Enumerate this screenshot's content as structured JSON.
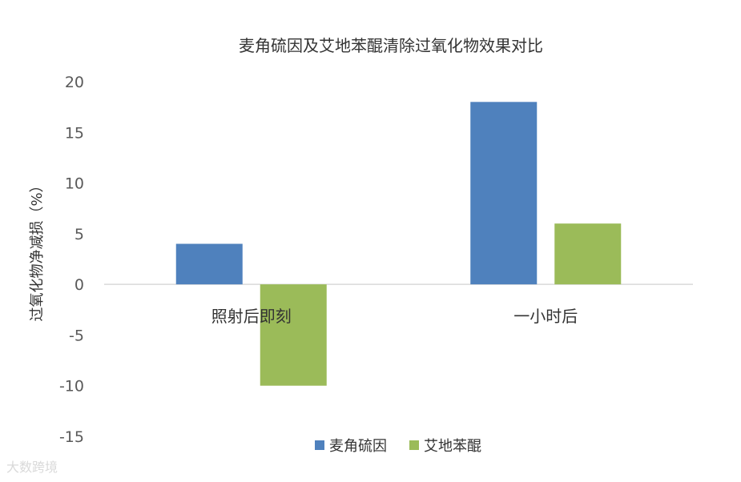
{
  "chart_data": {
    "type": "bar",
    "title": "麦角硫因及艾地苯醌清除过氧化物效果对比",
    "ylabel": "过氧化物净减损（%）",
    "xlabel": "",
    "categories": [
      "照射后即刻",
      "一小时后"
    ],
    "series": [
      {
        "name": "麦角硫因",
        "values": [
          4,
          18
        ],
        "color": "#4f81bd"
      },
      {
        "name": "艾地苯醌",
        "values": [
          -10,
          6
        ],
        "color": "#9bbb59"
      }
    ],
    "ylim": [
      -15,
      20
    ],
    "yticks": [
      20,
      15,
      10,
      5,
      0,
      -5,
      -10,
      -15
    ],
    "grid": false,
    "legend_position": "bottom"
  },
  "watermark": "大数跨境"
}
